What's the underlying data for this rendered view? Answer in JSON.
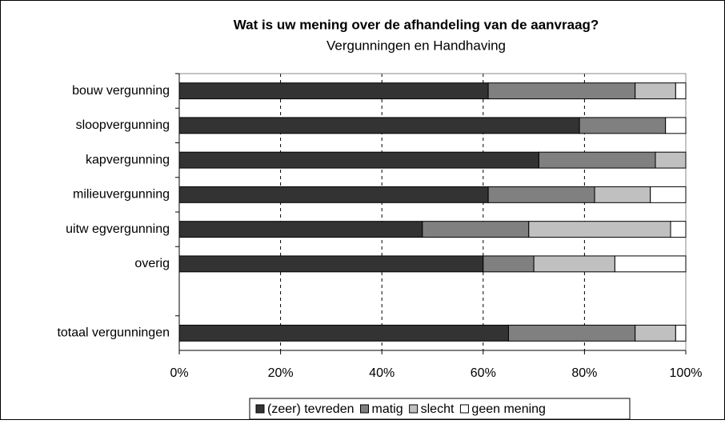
{
  "chart_data": {
    "type": "stacked-bar-horizontal",
    "title": "Wat is uw mening over de afhandeling van de aanvraag?",
    "subtitle": "Vergunningen en Handhaving",
    "categories": [
      "bouw vergunning",
      "sloopvergunning",
      "kapvergunning",
      "milieuvergunning",
      "uitw egvergunning",
      "overig",
      null,
      "totaal vergunningen"
    ],
    "series": [
      {
        "name": "(zeer) tevreden",
        "color": "#333333",
        "values": [
          61,
          79,
          71,
          61,
          48,
          60,
          null,
          65
        ]
      },
      {
        "name": "matig",
        "color": "#808080",
        "values": [
          29,
          17,
          23,
          21,
          21,
          10,
          null,
          25
        ]
      },
      {
        "name": "slecht",
        "color": "#c0c0c0",
        "values": [
          8,
          0,
          6,
          11,
          28,
          16,
          null,
          8
        ]
      },
      {
        "name": "geen mening",
        "color": "#ffffff",
        "values": [
          2,
          4,
          0,
          7,
          3,
          14,
          null,
          2
        ]
      }
    ],
    "xlim": [
      0,
      100
    ],
    "xticks": [
      {
        "value": 0,
        "label": "0%"
      },
      {
        "value": 20,
        "label": "20%"
      },
      {
        "value": 40,
        "label": "40%"
      },
      {
        "value": 60,
        "label": "60%"
      },
      {
        "value": 80,
        "label": "80%"
      },
      {
        "value": 100,
        "label": "100%"
      }
    ],
    "grid": true,
    "legend": "bottom"
  }
}
